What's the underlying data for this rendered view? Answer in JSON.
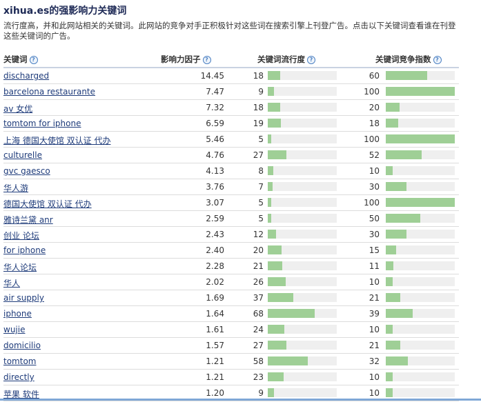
{
  "title": "xihua.es的强影响力关键词",
  "description": "流行度高，并和此网站相关的关键词。此网站的竞争对手正积极针对这些词在搜索引擎上刊登广告。点击以下关键词查看谁在刊登这些关键词的广告。",
  "headers": {
    "keyword": "关键词",
    "score": "影响力因子",
    "popularity": "关键词流行度",
    "competition": "关键词竞争指数"
  },
  "rows": [
    {
      "keyword": "discharged",
      "score": "14.45",
      "popularity": 18,
      "competition": 60
    },
    {
      "keyword": "barcelona restaurante",
      "score": "7.47",
      "popularity": 9,
      "competition": 100
    },
    {
      "keyword": "av 女优",
      "score": "7.32",
      "popularity": 18,
      "competition": 20
    },
    {
      "keyword": "tomtom for iphone",
      "score": "6.59",
      "popularity": 19,
      "competition": 18
    },
    {
      "keyword": "上海 德国大使馆 双认证 代办",
      "score": "5.46",
      "popularity": 5,
      "competition": 100
    },
    {
      "keyword": "culturelle",
      "score": "4.76",
      "popularity": 27,
      "competition": 52
    },
    {
      "keyword": "gvc gaesco",
      "score": "4.13",
      "popularity": 8,
      "competition": 10
    },
    {
      "keyword": "华人游",
      "score": "3.76",
      "popularity": 7,
      "competition": 30
    },
    {
      "keyword": "德国大使馆 双认证 代办",
      "score": "3.07",
      "popularity": 5,
      "competition": 100
    },
    {
      "keyword": "雅诗兰黛 anr",
      "score": "2.59",
      "popularity": 5,
      "competition": 50
    },
    {
      "keyword": "创业 论坛",
      "score": "2.43",
      "popularity": 12,
      "competition": 30
    },
    {
      "keyword": "for iphone",
      "score": "2.40",
      "popularity": 20,
      "competition": 15
    },
    {
      "keyword": "华人论坛",
      "score": "2.28",
      "popularity": 21,
      "competition": 11
    },
    {
      "keyword": "华人",
      "score": "2.02",
      "popularity": 26,
      "competition": 10
    },
    {
      "keyword": "air supply",
      "score": "1.69",
      "popularity": 37,
      "competition": 21
    },
    {
      "keyword": "iphone",
      "score": "1.64",
      "popularity": 68,
      "competition": 39
    },
    {
      "keyword": "wujie",
      "score": "1.61",
      "popularity": 24,
      "competition": 10
    },
    {
      "keyword": "domicilio",
      "score": "1.57",
      "popularity": 27,
      "competition": 21
    },
    {
      "keyword": "tomtom",
      "score": "1.21",
      "popularity": 58,
      "competition": 32
    },
    {
      "keyword": "directly",
      "score": "1.21",
      "popularity": 23,
      "competition": 10
    },
    {
      "keyword": "苹果 软件",
      "score": "1.20",
      "popularity": 9,
      "competition": 10
    }
  ],
  "colors": {
    "bar_fill": "#9fcf96",
    "bar_track": "#efefef",
    "link": "#1e3b7a",
    "title": "#1e2a56"
  },
  "icons": {
    "help": "help-icon"
  }
}
